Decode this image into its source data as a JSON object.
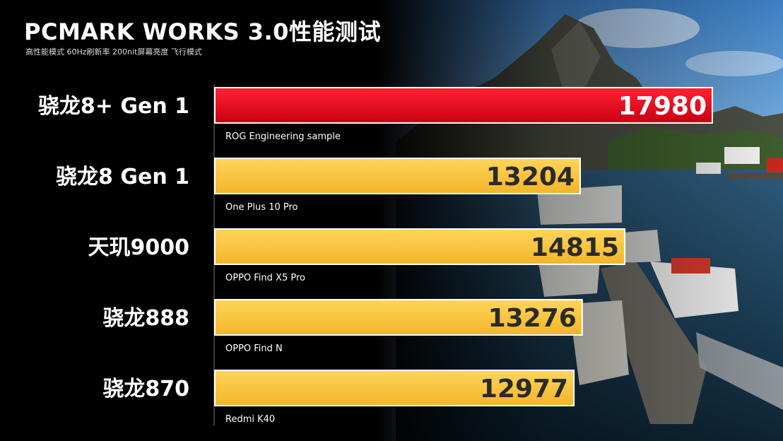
{
  "header": {
    "title": "PCMARK WORKS 3.0性能测试",
    "subtitle": "高性能模式 60Hz刷新率 200nit屏幕亮度 飞行模式"
  },
  "colors": {
    "highlight_bar": "#e0001a",
    "bar": "#f7c33a",
    "bar_light": "#fde9a0"
  },
  "chart_data": {
    "type": "bar",
    "orientation": "horizontal",
    "categories": [
      "骁龙8+ Gen 1",
      "骁龙8 Gen 1",
      "天玑9000",
      "骁龙888",
      "骁龙870"
    ],
    "devices": [
      "ROG Engineering sample",
      "One Plus 10 Pro",
      "OPPO Find X5 Pro",
      "OPPO Find N",
      "Redmi K40"
    ],
    "values": [
      17980,
      13204,
      14815,
      13276,
      12977
    ],
    "highlight_index": 0,
    "xlim": [
      0,
      17980
    ],
    "xlabel": "",
    "ylabel": "",
    "grid": false
  }
}
